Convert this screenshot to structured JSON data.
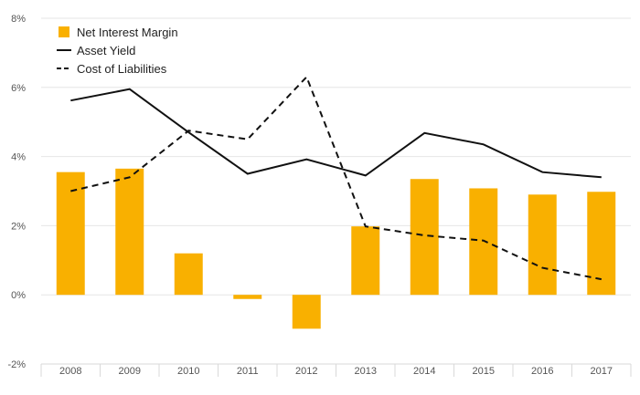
{
  "chart_data": {
    "type": "bar",
    "categories": [
      "2008",
      "2009",
      "2010",
      "2011",
      "2012",
      "2013",
      "2014",
      "2015",
      "2016",
      "2017"
    ],
    "ylim": [
      -2,
      8
    ],
    "yticks": [
      -2,
      0,
      2,
      4,
      6,
      8
    ],
    "ytick_labels": [
      "-2%",
      "0%",
      "2%",
      "4%",
      "6%",
      "8%"
    ],
    "grid": true,
    "legend_position": "top-left",
    "series": [
      {
        "name": "Net Interest Margin",
        "kind": "bar",
        "color": "#F9B000",
        "values": [
          3.55,
          3.65,
          1.2,
          -0.12,
          -0.98,
          1.98,
          3.35,
          3.08,
          2.9,
          2.98
        ]
      },
      {
        "name": "Asset Yield",
        "kind": "line",
        "style": "solid",
        "color": "#111111",
        "values": [
          5.62,
          5.95,
          4.7,
          3.5,
          3.92,
          3.45,
          4.68,
          4.35,
          3.55,
          3.4
        ]
      },
      {
        "name": "Cost of Liabilities",
        "kind": "line",
        "style": "dashed",
        "color": "#111111",
        "values": [
          3.0,
          3.4,
          4.75,
          4.5,
          6.3,
          1.98,
          1.72,
          1.57,
          0.78,
          0.45
        ]
      }
    ]
  }
}
